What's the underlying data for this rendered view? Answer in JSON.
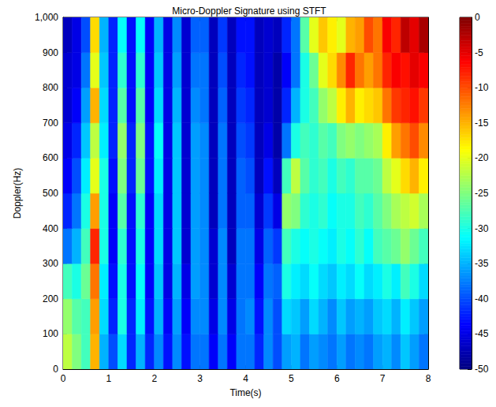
{
  "chart_data": {
    "type": "heatmap",
    "title": "Micro-Doppler Signature using STFT",
    "x_label": "Time(s)",
    "y_label": "Doppler(Hz)",
    "xlim": [
      0,
      8
    ],
    "xticks": [
      0,
      1,
      2,
      3,
      4,
      5,
      6,
      7,
      8
    ],
    "ylim": [
      0,
      1000
    ],
    "yticks": [
      0,
      100,
      200,
      300,
      400,
      500,
      600,
      700,
      800,
      900,
      1000
    ],
    "time_bins": [
      0,
      0.2,
      0.4,
      0.6,
      0.8,
      1,
      1.2,
      1.4,
      1.6,
      1.8,
      2,
      2.2,
      2.4,
      2.6,
      2.8,
      3,
      3.2,
      3.4,
      3.6,
      3.8,
      4,
      4.2,
      4.4,
      4.6,
      4.8,
      5,
      5.2,
      5.4,
      5.6,
      5.8,
      6,
      6.2,
      6.4,
      6.6,
      6.8,
      7,
      7.2,
      7.4,
      7.6,
      7.8,
      8
    ],
    "doppler_bins": [
      0,
      100,
      200,
      300,
      400,
      500,
      600,
      700,
      800,
      900,
      1000
    ],
    "cells": [
      [
        -22,
        -25,
        -28,
        -15,
        -35,
        -40,
        -33,
        -42,
        -35,
        -42,
        -37,
        -43,
        -37,
        -43,
        -38,
        -38,
        -44,
        -38,
        -44,
        -38,
        -38,
        -42,
        -37,
        -40,
        -36,
        -35,
        -38,
        -36,
        -37,
        -38,
        -36,
        -38,
        -37,
        -38,
        -36,
        -35,
        -37,
        -34,
        -36,
        -38
      ],
      [
        -24,
        -27,
        -28,
        -14,
        -33,
        -42,
        -30,
        -42,
        -32,
        -43,
        -35,
        -44,
        -36,
        -44,
        -37,
        -37,
        -45,
        -37,
        -45,
        -38,
        -37,
        -43,
        -37,
        -40,
        -33,
        -34,
        -36,
        -33,
        -35,
        -37,
        -34,
        -36,
        -35,
        -36,
        -34,
        -33,
        -35,
        -32,
        -34,
        -36
      ],
      [
        -28,
        -30,
        -26,
        -12,
        -32,
        -43,
        -30,
        -43,
        -31,
        -44,
        -34,
        -45,
        -35,
        -45,
        -36,
        -37,
        -46,
        -37,
        -46,
        -38,
        -38,
        -44,
        -38,
        -39,
        -30,
        -32,
        -33,
        -31,
        -33,
        -34,
        -32,
        -33,
        -31,
        -33,
        -32,
        -30,
        -32,
        -28,
        -30,
        -33
      ],
      [
        -38,
        -35,
        -28,
        -8,
        -30,
        -44,
        -29,
        -43,
        -30,
        -44,
        -33,
        -45,
        -34,
        -46,
        -36,
        -37,
        -46,
        -37,
        -47,
        -38,
        -38,
        -45,
        -39,
        -41,
        -28,
        -30,
        -31,
        -30,
        -31,
        -32,
        -30,
        -31,
        -29,
        -31,
        -28,
        -27,
        -26,
        -24,
        -26,
        -28
      ],
      [
        -42,
        -38,
        -30,
        -14,
        -30,
        -44,
        -27,
        -43,
        -29,
        -44,
        -33,
        -45,
        -34,
        -46,
        -36,
        -37,
        -47,
        -38,
        -47,
        -39,
        -39,
        -46,
        -41,
        -45,
        -24,
        -25,
        -29,
        -30,
        -29,
        -31,
        -30,
        -30,
        -28,
        -29,
        -27,
        -25,
        -23,
        -22,
        -21,
        -23
      ],
      [
        -44,
        -40,
        -32,
        -20,
        -30,
        -43,
        -25,
        -42,
        -26,
        -43,
        -32,
        -45,
        -34,
        -46,
        -36,
        -37,
        -47,
        -38,
        -47,
        -39,
        -40,
        -47,
        -43,
        -47,
        -28,
        -22,
        -27,
        -29,
        -28,
        -30,
        -28,
        -29,
        -27,
        -27,
        -26,
        -22,
        -20,
        -17,
        -15,
        -18
      ],
      [
        -45,
        -42,
        -34,
        -22,
        -32,
        -42,
        -24,
        -42,
        -25,
        -43,
        -31,
        -45,
        -34,
        -46,
        -36,
        -37,
        -47,
        -38,
        -47,
        -40,
        -41,
        -47,
        -45,
        -48,
        -38,
        -30,
        -28,
        -29,
        -27,
        -28,
        -25,
        -24,
        -25,
        -24,
        -23,
        -18,
        -14,
        -12,
        -10,
        -13
      ],
      [
        -46,
        -44,
        -36,
        -15,
        -33,
        -42,
        -27,
        -43,
        -27,
        -44,
        -33,
        -45,
        -35,
        -46,
        -37,
        -38,
        -47,
        -39,
        -47,
        -41,
        -42,
        -47,
        -46,
        -48,
        -42,
        -35,
        -30,
        -28,
        -24,
        -22,
        -18,
        -15,
        -18,
        -17,
        -16,
        -12,
        -9,
        -8,
        -7,
        -9
      ],
      [
        -46,
        -45,
        -38,
        -20,
        -34,
        -42,
        -29,
        -43,
        -29,
        -44,
        -34,
        -45,
        -36,
        -46,
        -38,
        -38,
        -47,
        -40,
        -47,
        -42,
        -43,
        -47,
        -46,
        -48,
        -44,
        -38,
        -30,
        -26,
        -20,
        -17,
        -13,
        -8,
        -12,
        -14,
        -12,
        -8,
        -6,
        -7,
        -5,
        -6
      ],
      [
        -47,
        -45,
        -40,
        -17,
        -35,
        -42,
        -31,
        -43,
        -31,
        -44,
        -35,
        -45,
        -37,
        -46,
        -39,
        -39,
        -47,
        -41,
        -47,
        -43,
        -43,
        -47,
        -46,
        -47,
        -42,
        -38,
        -27,
        -20,
        -16,
        -18,
        -20,
        -15,
        -14,
        -10,
        -12,
        -6,
        -8,
        -3,
        -5,
        -2
      ]
    ],
    "colorbar": {
      "lim": [
        -50,
        0
      ],
      "ticks": [
        0,
        -5,
        -10,
        -15,
        -20,
        -25,
        -30,
        -35,
        -40,
        -45,
        -50
      ]
    }
  }
}
